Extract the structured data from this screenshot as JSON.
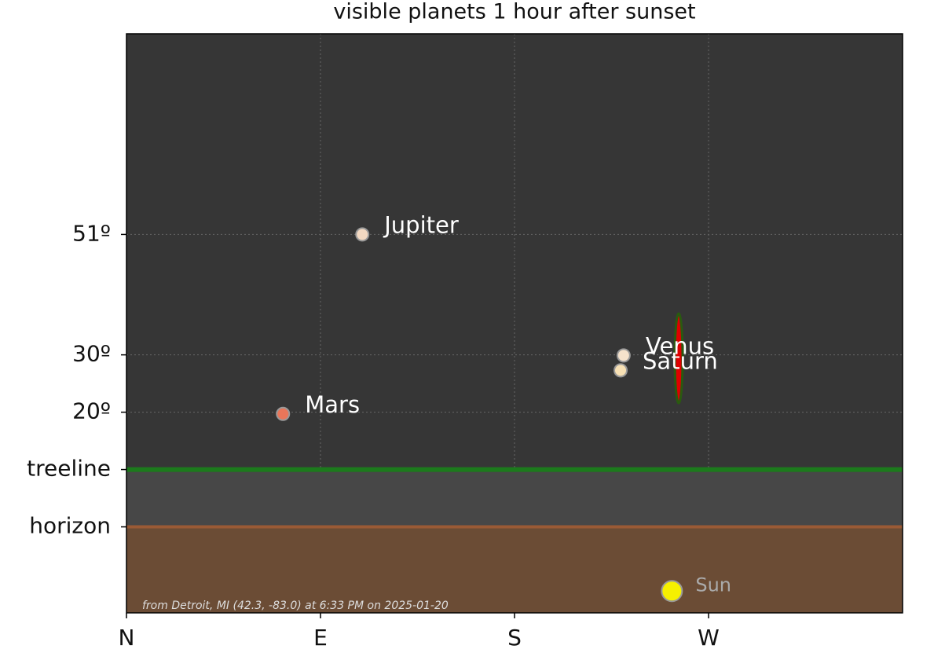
{
  "chart_data": {
    "type": "scatter",
    "title": "visible planets 1 hour after sunset",
    "annotation": "from Detroit, MI (42.3, -83.0) at 6:33 PM on 2025-01-20",
    "xlim": [
      0,
      360
    ],
    "xticks": [
      {
        "value": 0,
        "label": "N"
      },
      {
        "value": 90,
        "label": "E"
      },
      {
        "value": 180,
        "label": "S"
      },
      {
        "value": 270,
        "label": "W"
      }
    ],
    "ylim": [
      -15,
      86
    ],
    "yticks": [
      {
        "value": 51,
        "label": "51º"
      },
      {
        "value": 30,
        "label": "30º"
      },
      {
        "value": 20,
        "label": "20º"
      },
      {
        "value": 10,
        "label": "treeline"
      },
      {
        "value": 0,
        "label": "horizon"
      }
    ],
    "grid": true,
    "background": "#363636",
    "band_color": "#474747",
    "ground_color": "#6b4c35",
    "horizon_color": "#9a5a35",
    "treeline_color": "#1c7a1c",
    "points": [
      {
        "name": "Jupiter",
        "color": "#f3d9c2",
        "x": 109.4,
        "y": 51
      },
      {
        "name": "Mars",
        "color": "#e8765a",
        "x": 72.6,
        "y": 19.7
      },
      {
        "name": "Venus",
        "color": "#f5e2cc",
        "x": 230.6,
        "y": 29.9
      },
      {
        "name": "Saturn",
        "color": "#f7e0b4",
        "x": 229.2,
        "y": 27.3
      },
      {
        "name": "Sun",
        "color": "#f5f000",
        "x": 253,
        "y": -11.2
      }
    ]
  }
}
